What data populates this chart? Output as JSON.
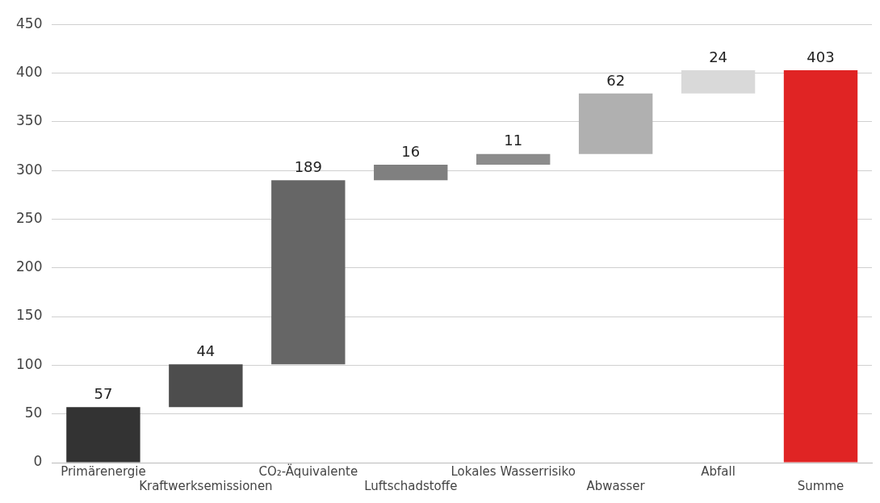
{
  "chart_data": {
    "type": "bar",
    "categories": [
      "Primärenergie",
      "Kraftwerksemissionen",
      "CO₂-Äquivalente",
      "Luftschadstoffe",
      "Lokales Wasserrisiko",
      "Abwasser",
      "Abfall",
      "Summe"
    ],
    "values": [
      57,
      44,
      189,
      16,
      11,
      62,
      24,
      403
    ],
    "base": [
      0,
      57,
      101,
      290,
      306,
      317,
      379,
      0
    ],
    "colors": [
      "#333333",
      "#4d4d4d",
      "#666666",
      "#808080",
      "#8c8c8c",
      "#b0b0b0",
      "#d9d9d9",
      "#e02424"
    ],
    "ylim": [
      0,
      450
    ],
    "yticks": [
      0,
      50,
      100,
      150,
      200,
      250,
      300,
      350,
      400,
      450
    ],
    "grid": "y",
    "data_labels": true,
    "legend": false
  }
}
